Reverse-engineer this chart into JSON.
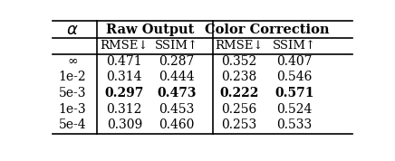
{
  "col_headers_row1_alpha": "α",
  "col_headers_row1_raw": "Raw Output",
  "col_headers_row1_cc": "Color Correction",
  "col_headers_row2": [
    "RMSE↓",
    "SSIM↑",
    "RMSE↓",
    "SSIM↑"
  ],
  "rows": [
    [
      "∞",
      "0.471",
      "0.287",
      "0.352",
      "0.407"
    ],
    [
      "1e-2",
      "0.314",
      "0.444",
      "0.238",
      "0.546"
    ],
    [
      "5e-3",
      "0.297",
      "0.473",
      "0.222",
      "0.571"
    ],
    [
      "1e-3",
      "0.312",
      "0.453",
      "0.256",
      "0.524"
    ],
    [
      "5e-4",
      "0.309",
      "0.460",
      "0.253",
      "0.533"
    ]
  ],
  "bold_row": 2,
  "bold_cols": [
    1,
    2,
    3,
    4
  ],
  "background_color": "#ffffff"
}
